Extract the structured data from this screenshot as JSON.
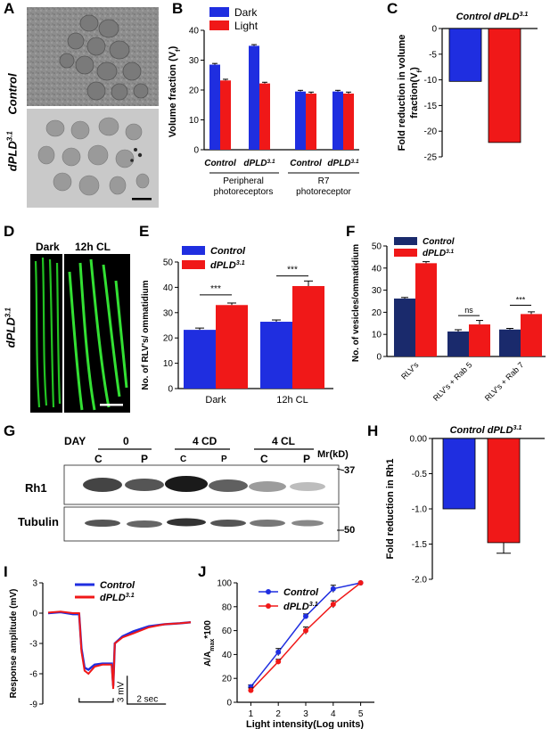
{
  "panels": {
    "A": "A",
    "B": "B",
    "C": "C",
    "D": "D",
    "E": "E",
    "F": "F",
    "G": "G",
    "H": "H",
    "I": "I",
    "J": "J"
  },
  "panel_a": {
    "label_top": "Control",
    "label_bottom": "dPLD",
    "sup": "3.1"
  },
  "panel_d": {
    "label_dark": "Dark",
    "label_cl": "12h CL",
    "side_label": "dPLD",
    "sup": "3.1"
  },
  "colors": {
    "blue": "#1f2ee0",
    "red": "#f01818",
    "black": "#000000",
    "green": "#1fb81f"
  },
  "panel_g": {
    "day_label": "DAY",
    "groups": [
      "0",
      "4 CD",
      "4 CL"
    ],
    "lanes": [
      "C",
      "P",
      "C",
      "P",
      "C",
      "P"
    ],
    "mr_label": "Mr(kD)",
    "row1": "Rh1",
    "row2": "Tubulin",
    "mw_top": "37",
    "mw_bottom": "50"
  },
  "chart_data": [
    {
      "id": "B",
      "type": "bar",
      "ylabel": "Volume fraction (V",
      "ylabel_sub": "f",
      "ylabel_end": ")",
      "ylim": [
        0,
        40
      ],
      "yticks": [
        0,
        10,
        20,
        30,
        40
      ],
      "legend": [
        "Dark",
        "Light"
      ],
      "categories": [
        "Control",
        "dPLD",
        "Control",
        "dPLD"
      ],
      "category_sup": [
        "",
        "3.1",
        "",
        "3.1"
      ],
      "group_labels": [
        [
          "Peripheral",
          "photoreceptors"
        ],
        [
          "R7",
          "photoreceptor"
        ]
      ],
      "series": [
        {
          "name": "Dark",
          "values": [
            28.5,
            34.8,
            19.5,
            19.5
          ],
          "err": [
            0.4,
            0.4,
            0.4,
            0.4
          ]
        },
        {
          "name": "Light",
          "values": [
            23.2,
            22.2,
            18.8,
            18.8
          ],
          "err": [
            0.4,
            0.4,
            0.5,
            0.5
          ]
        }
      ]
    },
    {
      "id": "C",
      "type": "bar",
      "title": "Control dPLD",
      "title_sup": "3.1",
      "ylabel": [
        "Fold reduction in volume",
        "fraction(V",
        "f",
        ")"
      ],
      "ylim": [
        -25,
        0
      ],
      "yticks": [
        0,
        -5,
        -10,
        -15,
        -20,
        -25
      ],
      "categories": [
        "Control",
        "dPLD3.1"
      ],
      "values": [
        -10.3,
        -22.2
      ]
    },
    {
      "id": "E",
      "type": "bar",
      "ylabel": "No. of RLV's/ ommatidium",
      "ylim": [
        0,
        50
      ],
      "yticks": [
        0,
        10,
        20,
        30,
        40,
        50
      ],
      "legend": [
        "Control",
        "dPLD"
      ],
      "legend_sup": [
        "",
        "3.1"
      ],
      "categories": [
        "Dark",
        "12h CL"
      ],
      "significance": [
        "***",
        "***"
      ],
      "series": [
        {
          "name": "Control",
          "values": [
            23.2,
            26.4
          ],
          "err": [
            0.7,
            0.7
          ]
        },
        {
          "name": "dPLD3.1",
          "values": [
            33.0,
            40.5
          ],
          "err": [
            0.8,
            2.0
          ]
        }
      ]
    },
    {
      "id": "F",
      "type": "bar",
      "ylabel": "No. of vesicles/ommatidium",
      "ylim": [
        0,
        50
      ],
      "yticks": [
        0,
        10,
        20,
        30,
        40,
        50
      ],
      "legend": [
        "Control",
        "dPLD"
      ],
      "legend_sup": [
        "",
        "3.1"
      ],
      "categories": [
        "RLV's",
        "RLV's + Rab 5",
        "RLV's + Rab 7"
      ],
      "significance": [
        "",
        "ns",
        "***"
      ],
      "series": [
        {
          "name": "Control",
          "values": [
            26.2,
            11.3,
            12.2
          ],
          "err": [
            0.5,
            0.8,
            0.5
          ]
        },
        {
          "name": "dPLD3.1",
          "values": [
            42.2,
            14.5,
            19.2
          ],
          "err": [
            0.7,
            1.8,
            1.0
          ]
        }
      ]
    },
    {
      "id": "H",
      "type": "bar",
      "title": "Control dPLD",
      "title_sup": "3.1",
      "ylabel": "Fold reduction in Rh1",
      "ylim": [
        -2.0,
        0
      ],
      "yticks": [
        "0.00",
        "-0.5",
        "-1.0",
        "-1.5",
        "-2.0"
      ],
      "ytick_values": [
        0,
        -0.5,
        -1.0,
        -1.5,
        -2.0
      ],
      "categories": [
        "Control",
        "dPLD3.1"
      ],
      "values": [
        -1.0,
        -1.48
      ],
      "err": [
        0,
        0.15
      ]
    },
    {
      "id": "I",
      "type": "line",
      "ylabel": "Response amplitude (mV)",
      "ylim": [
        -9,
        3
      ],
      "yticks": [
        3,
        0,
        -3,
        -6,
        -9
      ],
      "legend": [
        "Control",
        "dPLD"
      ],
      "legend_sup": [
        "",
        "3.1"
      ],
      "scale_mv": "3 mV",
      "scale_sec": "2 sec",
      "series": [
        {
          "name": "Control",
          "points": [
            [
              0,
              0
            ],
            [
              0.8,
              0.1
            ],
            [
              1.6,
              -0.1
            ],
            [
              2.0,
              -0.1
            ],
            [
              2.15,
              -3.5
            ],
            [
              2.35,
              -5.4
            ],
            [
              2.6,
              -5.6
            ],
            [
              3.0,
              -5.1
            ],
            [
              3.5,
              -5.0
            ],
            [
              4.1,
              -5.0
            ],
            [
              4.2,
              -7.2
            ],
            [
              4.3,
              -3.0
            ],
            [
              4.8,
              -2.3
            ],
            [
              5.5,
              -1.8
            ],
            [
              6.5,
              -1.3
            ],
            [
              7.5,
              -1.1
            ],
            [
              8.5,
              -1.0
            ],
            [
              9.2,
              -0.9
            ]
          ]
        },
        {
          "name": "dPLD3.1",
          "points": [
            [
              0,
              0.05
            ],
            [
              0.8,
              0.15
            ],
            [
              1.6,
              0
            ],
            [
              2.0,
              0
            ],
            [
              2.15,
              -3.8
            ],
            [
              2.35,
              -5.7
            ],
            [
              2.6,
              -6.0
            ],
            [
              3.0,
              -5.3
            ],
            [
              3.5,
              -5.1
            ],
            [
              4.1,
              -5.1
            ],
            [
              4.2,
              -7.5
            ],
            [
              4.3,
              -3.0
            ],
            [
              4.8,
              -2.4
            ],
            [
              5.5,
              -2.0
            ],
            [
              6.5,
              -1.4
            ],
            [
              7.5,
              -1.1
            ],
            [
              8.5,
              -1.0
            ],
            [
              9.2,
              -0.9
            ]
          ]
        }
      ]
    },
    {
      "id": "J",
      "type": "line",
      "xlabel": "Light intensity(Log units)",
      "ylabel": "A/A",
      "ylabel_sub": "max",
      "ylabel_end": "*100",
      "xlim": [
        0.5,
        5.5
      ],
      "ylim": [
        0,
        100
      ],
      "xticks": [
        1,
        2,
        3,
        4,
        5
      ],
      "yticks": [
        0,
        20,
        40,
        60,
        80,
        100
      ],
      "legend": [
        "Control",
        "dPLD"
      ],
      "legend_sup": [
        "",
        "3.1"
      ],
      "series": [
        {
          "name": "Control",
          "x": [
            1,
            2,
            3,
            4,
            5
          ],
          "values": [
            13,
            42,
            72,
            95,
            100
          ],
          "err": [
            1.5,
            3,
            2,
            3,
            0
          ]
        },
        {
          "name": "dPLD3.1",
          "x": [
            1,
            2,
            3,
            4,
            5
          ],
          "values": [
            10,
            34,
            60,
            82,
            100
          ],
          "err": [
            2,
            2,
            3,
            3,
            0
          ]
        }
      ]
    }
  ]
}
